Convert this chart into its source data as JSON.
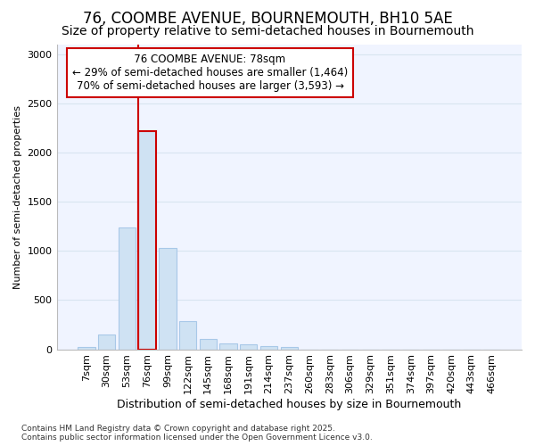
{
  "title1": "76, COOMBE AVENUE, BOURNEMOUTH, BH10 5AE",
  "title2": "Size of property relative to semi-detached houses in Bournemouth",
  "xlabel": "Distribution of semi-detached houses by size in Bournemouth",
  "ylabel": "Number of semi-detached properties",
  "footnote": "Contains HM Land Registry data © Crown copyright and database right 2025.\nContains public sector information licensed under the Open Government Licence v3.0.",
  "categories": [
    "7sqm",
    "30sqm",
    "53sqm",
    "76sqm",
    "99sqm",
    "122sqm",
    "145sqm",
    "168sqm",
    "191sqm",
    "214sqm",
    "237sqm",
    "260sqm",
    "283sqm",
    "306sqm",
    "329sqm",
    "351sqm",
    "374sqm",
    "397sqm",
    "420sqm",
    "443sqm",
    "466sqm"
  ],
  "values": [
    20,
    150,
    1240,
    2220,
    1030,
    290,
    105,
    60,
    55,
    35,
    20,
    0,
    0,
    0,
    0,
    0,
    0,
    0,
    0,
    0,
    0
  ],
  "bar_color": "#cfe2f3",
  "bar_edge_color": "#a8c8e8",
  "highlight_bar_index": 3,
  "highlight_edge_color": "#cc0000",
  "vline_color": "#cc0000",
  "property_label": "76 COOMBE AVENUE: 78sqm",
  "pct_smaller": 29,
  "count_smaller": 1464,
  "pct_larger": 70,
  "count_larger": 3593,
  "annotation_box_color": "#cc0000",
  "annotation_box_bg": "#ffffff",
  "ylim": [
    0,
    3100
  ],
  "yticks": [
    0,
    500,
    1000,
    1500,
    2000,
    2500,
    3000
  ],
  "background_color": "#ffffff",
  "plot_bg_color": "#f0f4ff",
  "grid_color": "#d8e4f0",
  "title1_fontsize": 12,
  "title2_fontsize": 10,
  "annotation_fontsize": 8.5,
  "axis_label_fontsize": 9,
  "ylabel_fontsize": 8,
  "tick_fontsize": 8,
  "footnote_fontsize": 6.5
}
